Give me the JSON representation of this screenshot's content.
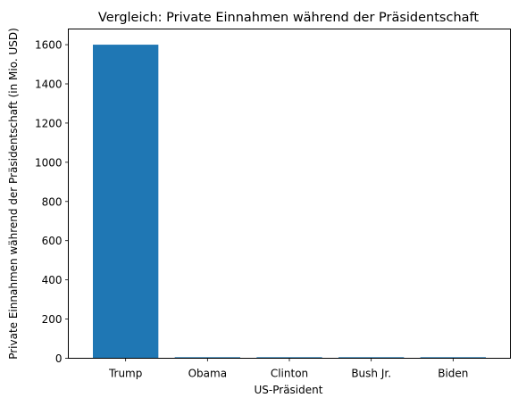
{
  "chart_data": {
    "type": "bar",
    "title": "Vergleich: Private Einnahmen während der Präsidentschaft",
    "xlabel": "US-Präsident",
    "ylabel": "Private Einnahmen während der Präsidentschaft (in Mio. USD)",
    "categories": [
      "Trump",
      "Obama",
      "Clinton",
      "Bush Jr.",
      "Biden"
    ],
    "values": [
      1600,
      0,
      0,
      0,
      0
    ],
    "ylim": [
      0,
      1680
    ],
    "yticks": [
      "0",
      "200",
      "400",
      "600",
      "800",
      "1000",
      "1200",
      "1400",
      "1600"
    ],
    "grid": false,
    "legend": "none",
    "bar_color": "#1f77b4"
  }
}
